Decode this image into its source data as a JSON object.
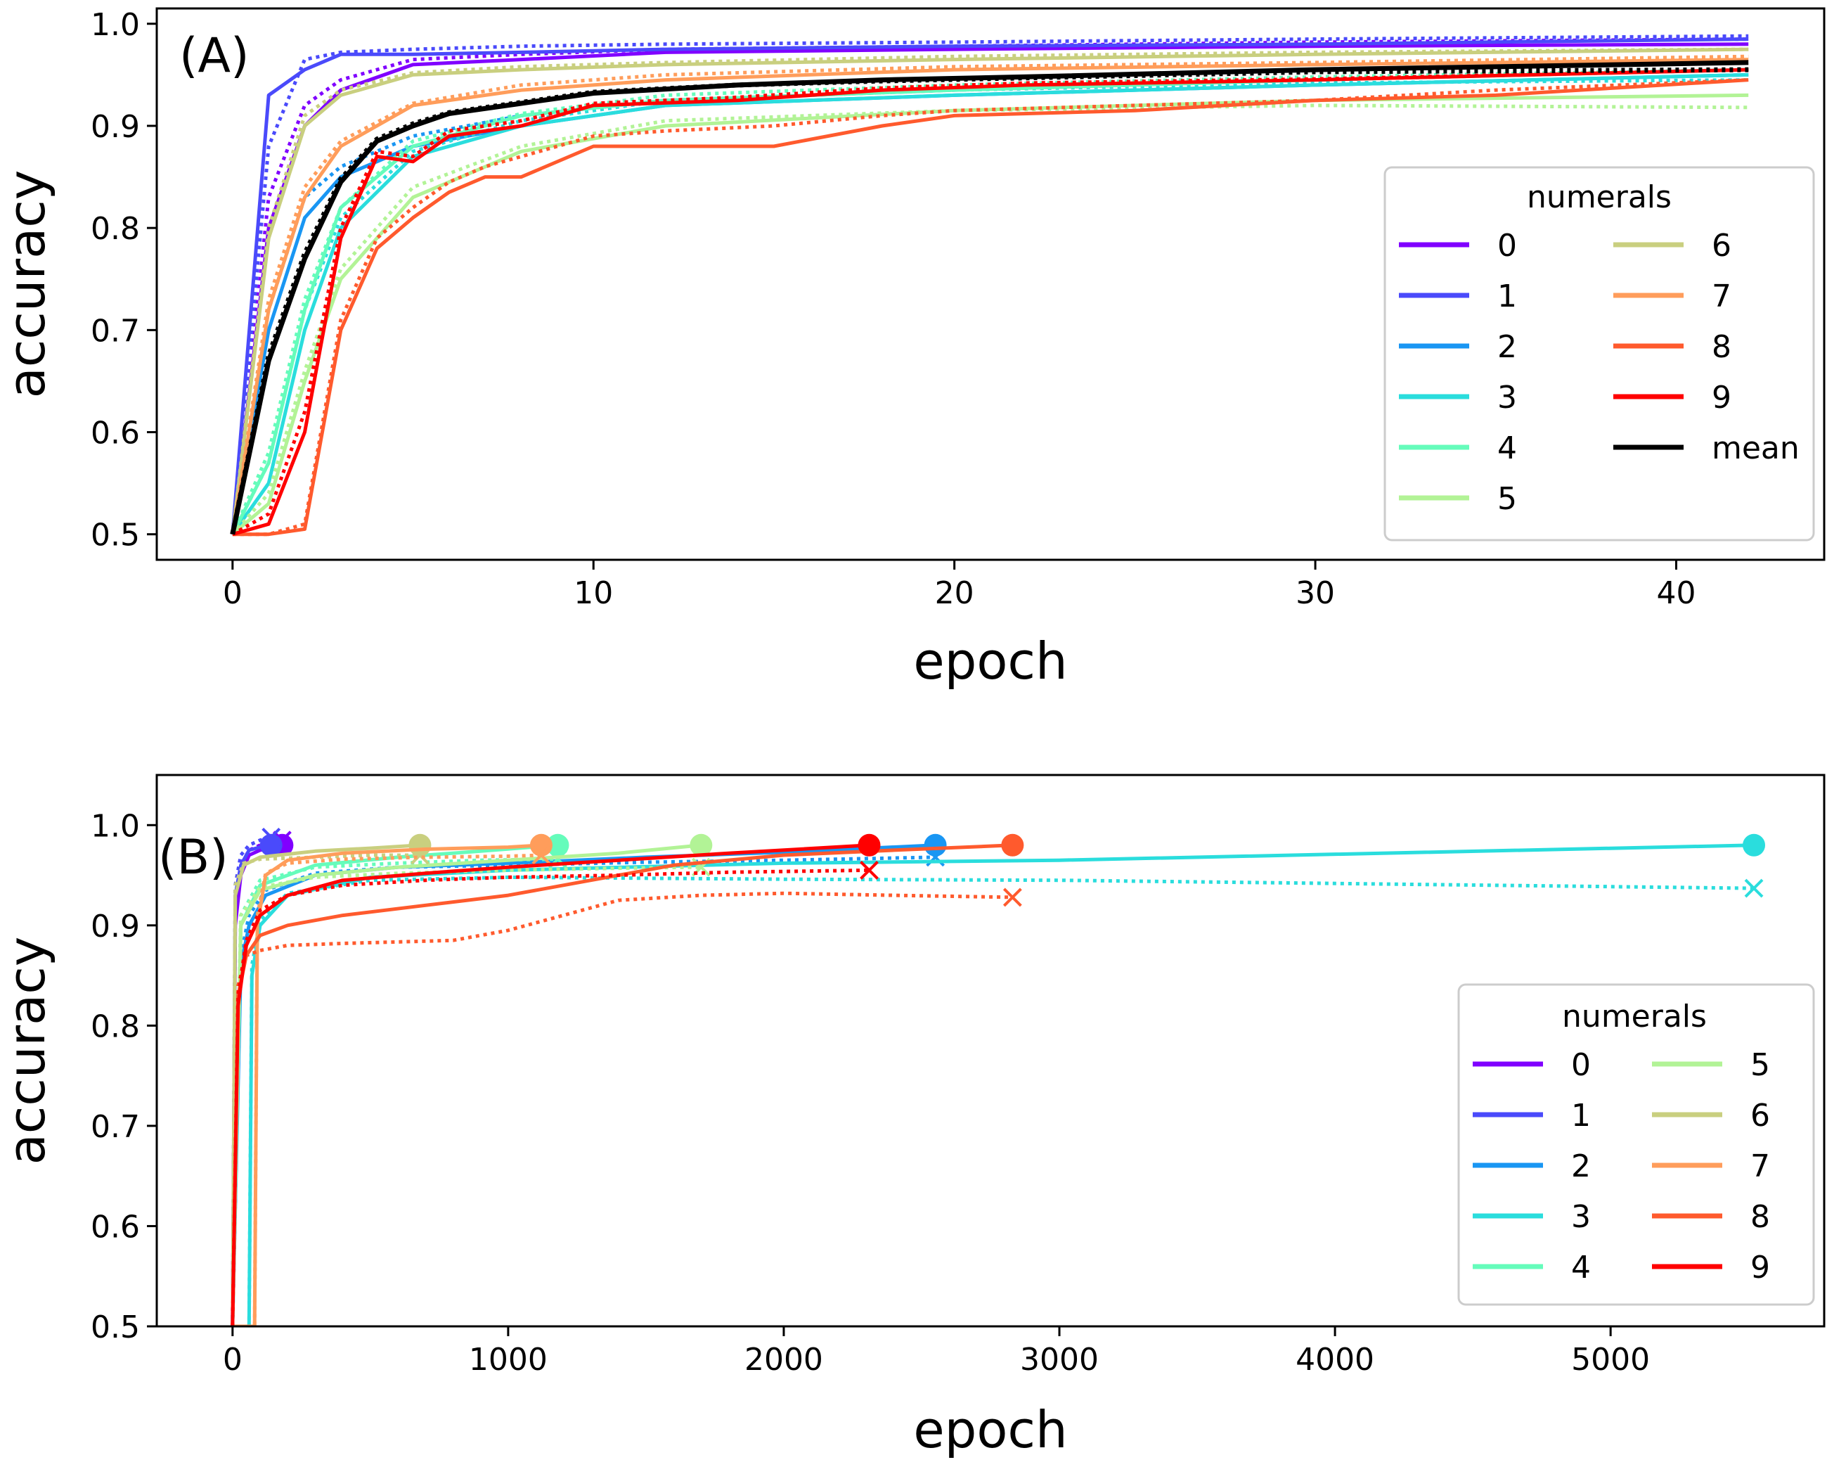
{
  "chart_data": [
    {
      "type": "line",
      "panel_label": "(A)",
      "xlabel": "epoch",
      "ylabel": "accuracy",
      "xlim": [
        -2.1,
        44.1
      ],
      "ylim": [
        0.475,
        1.015
      ],
      "xticks": [
        0,
        10,
        20,
        30,
        40
      ],
      "xtick_labels": [
        "0",
        "10",
        "20",
        "30",
        "40"
      ],
      "yticks": [
        0.5,
        0.6,
        0.7,
        0.8,
        0.9,
        1.0
      ],
      "ytick_labels": [
        "0.5",
        "0.6",
        "0.7",
        "0.8",
        "0.9",
        "1.0"
      ],
      "legend": {
        "title": "numerals",
        "placement": "center-right",
        "columns": 2
      },
      "series": [
        {
          "name": "0",
          "color": "#8000ff",
          "x": [
            0,
            1,
            2,
            3,
            5,
            8,
            12,
            20,
            30,
            42
          ],
          "values": [
            0.5,
            0.8,
            0.9,
            0.935,
            0.96,
            0.965,
            0.972,
            0.975,
            0.978,
            0.98
          ],
          "dotted_values": [
            0.5,
            0.83,
            0.92,
            0.945,
            0.965,
            0.97,
            0.975,
            0.978,
            0.982,
            0.985
          ]
        },
        {
          "name": "1",
          "color": "#4a4afb",
          "x": [
            0,
            1,
            2,
            3,
            5,
            8,
            12,
            20,
            30,
            42
          ],
          "values": [
            0.5,
            0.93,
            0.955,
            0.97,
            0.97,
            0.972,
            0.975,
            0.978,
            0.98,
            0.985
          ],
          "dotted_values": [
            0.5,
            0.88,
            0.965,
            0.972,
            0.975,
            0.978,
            0.98,
            0.982,
            0.985,
            0.988
          ]
        },
        {
          "name": "2",
          "color": "#1996f3",
          "x": [
            0,
            1,
            2,
            3,
            5,
            8,
            12,
            20,
            30,
            42
          ],
          "values": [
            0.5,
            0.7,
            0.81,
            0.85,
            0.88,
            0.9,
            0.92,
            0.93,
            0.94,
            0.95
          ],
          "dotted_values": [
            0.5,
            0.72,
            0.83,
            0.86,
            0.89,
            0.91,
            0.925,
            0.935,
            0.945,
            0.955
          ]
        },
        {
          "name": "3",
          "color": "#2adddd",
          "x": [
            0,
            1,
            2,
            3,
            5,
            8,
            12,
            20,
            30,
            42
          ],
          "values": [
            0.5,
            0.55,
            0.7,
            0.8,
            0.87,
            0.9,
            0.92,
            0.93,
            0.94,
            0.95
          ],
          "dotted_values": [
            0.5,
            0.57,
            0.72,
            0.81,
            0.875,
            0.905,
            0.925,
            0.935,
            0.942,
            0.945
          ]
        },
        {
          "name": "4",
          "color": "#65fcbb",
          "x": [
            0,
            1,
            2,
            3,
            5,
            8,
            12,
            20,
            30,
            42
          ],
          "values": [
            0.5,
            0.57,
            0.72,
            0.82,
            0.88,
            0.91,
            0.925,
            0.935,
            0.945,
            0.955
          ],
          "dotted_values": [
            0.5,
            0.58,
            0.73,
            0.82,
            0.885,
            0.912,
            0.93,
            0.94,
            0.948,
            0.955
          ]
        },
        {
          "name": "5",
          "color": "#b2f396",
          "x": [
            0,
            1,
            2,
            3,
            5,
            8,
            12,
            20,
            30,
            42
          ],
          "values": [
            0.5,
            0.53,
            0.65,
            0.75,
            0.83,
            0.875,
            0.9,
            0.915,
            0.925,
            0.93
          ],
          "dotted_values": [
            0.5,
            0.54,
            0.66,
            0.76,
            0.84,
            0.88,
            0.905,
            0.915,
            0.92,
            0.918
          ]
        },
        {
          "name": "6",
          "color": "#c9cf7f",
          "x": [
            0,
            1,
            2,
            3,
            5,
            8,
            12,
            20,
            30,
            42
          ],
          "values": [
            0.5,
            0.79,
            0.9,
            0.93,
            0.95,
            0.955,
            0.96,
            0.965,
            0.97,
            0.975
          ],
          "dotted_values": [
            0.5,
            0.8,
            0.91,
            0.935,
            0.952,
            0.958,
            0.962,
            0.968,
            0.972,
            0.975
          ]
        },
        {
          "name": "7",
          "color": "#ff9d5b",
          "x": [
            0,
            1,
            2,
            3,
            5,
            8,
            12,
            20,
            30,
            42
          ],
          "values": [
            0.5,
            0.72,
            0.83,
            0.88,
            0.92,
            0.935,
            0.945,
            0.955,
            0.96,
            0.965
          ],
          "dotted_values": [
            0.5,
            0.73,
            0.84,
            0.885,
            0.922,
            0.94,
            0.95,
            0.958,
            0.962,
            0.968
          ]
        },
        {
          "name": "8",
          "color": "#ff5a2d",
          "x": [
            0,
            1,
            2,
            3,
            4,
            5,
            6,
            7,
            8,
            10,
            12,
            15,
            18,
            20,
            25,
            30,
            35,
            42
          ],
          "values": [
            0.5,
            0.5,
            0.505,
            0.7,
            0.78,
            0.81,
            0.835,
            0.85,
            0.85,
            0.88,
            0.88,
            0.88,
            0.9,
            0.91,
            0.915,
            0.925,
            0.93,
            0.945
          ],
          "dotted_values": [
            0.5,
            0.5,
            0.51,
            0.71,
            0.79,
            0.82,
            0.845,
            0.86,
            0.87,
            0.89,
            0.895,
            0.9,
            0.91,
            0.915,
            0.92,
            0.925,
            0.935,
            0.945
          ]
        },
        {
          "name": "9",
          "color": "#ff0000",
          "x": [
            0,
            1,
            2,
            3,
            4,
            5,
            6,
            8,
            10,
            14,
            18,
            22,
            30,
            42
          ],
          "values": [
            0.5,
            0.51,
            0.6,
            0.79,
            0.87,
            0.865,
            0.89,
            0.9,
            0.92,
            0.925,
            0.935,
            0.94,
            0.945,
            0.955
          ],
          "dotted_values": [
            0.5,
            0.52,
            0.62,
            0.8,
            0.875,
            0.87,
            0.895,
            0.905,
            0.922,
            0.928,
            0.937,
            0.942,
            0.946,
            0.955
          ]
        },
        {
          "name": "mean",
          "color": "#000000",
          "x": [
            0,
            1,
            2,
            3,
            4,
            5,
            6,
            8,
            10,
            14,
            18,
            22,
            30,
            42
          ],
          "values": [
            0.5,
            0.67,
            0.77,
            0.845,
            0.885,
            0.9,
            0.912,
            0.922,
            0.932,
            0.94,
            0.945,
            0.948,
            0.955,
            0.962
          ],
          "dotted_values": [
            0.5,
            0.675,
            0.775,
            0.848,
            0.887,
            0.902,
            0.913,
            0.923,
            0.933,
            0.94,
            0.944,
            0.947,
            0.953,
            0.955
          ]
        }
      ]
    },
    {
      "type": "line",
      "panel_label": "(B)",
      "xlabel": "epoch",
      "ylabel": "accuracy",
      "xlim": [
        -275,
        5775
      ],
      "ylim": [
        0.5,
        1.05
      ],
      "xticks": [
        0,
        1000,
        2000,
        3000,
        4000,
        5000
      ],
      "xtick_labels": [
        "0",
        "1000",
        "2000",
        "3000",
        "4000",
        "5000"
      ],
      "yticks": [
        0.5,
        0.6,
        0.7,
        0.8,
        0.9,
        1.0
      ],
      "ytick_labels": [
        "0.5",
        "0.6",
        "0.7",
        "0.8",
        "0.9",
        "1.0"
      ],
      "legend": {
        "title": "numerals",
        "placement": "lower-right",
        "columns": 2
      },
      "series": [
        {
          "name": "0",
          "color": "#8000ff",
          "x": [
            0,
            10,
            30,
            60,
            100,
            180
          ],
          "values": [
            0.5,
            0.9,
            0.95,
            0.97,
            0.975,
            0.98
          ],
          "dotted_x": [
            0,
            10,
            30,
            60,
            100,
            180
          ],
          "dotted_values": [
            0.5,
            0.92,
            0.96,
            0.975,
            0.98,
            0.985
          ],
          "end_epoch": 180,
          "end_value": 0.98,
          "test_value": 0.985
        },
        {
          "name": "1",
          "color": "#4a4afb",
          "x": [
            0,
            10,
            30,
            60,
            100,
            140
          ],
          "values": [
            0.5,
            0.93,
            0.96,
            0.975,
            0.978,
            0.98
          ],
          "dotted_x": [
            0,
            10,
            30,
            60,
            100,
            140
          ],
          "dotted_values": [
            0.5,
            0.94,
            0.97,
            0.98,
            0.985,
            0.988
          ],
          "end_epoch": 140,
          "end_value": 0.98,
          "test_value": 0.988
        },
        {
          "name": "2",
          "color": "#1996f3",
          "x": [
            0,
            30,
            60,
            120,
            300,
            600,
            1000,
            1500,
            2000,
            2550
          ],
          "values": [
            0.5,
            0.86,
            0.9,
            0.93,
            0.95,
            0.958,
            0.962,
            0.968,
            0.973,
            0.98
          ],
          "dotted_x": [
            0,
            30,
            60,
            120,
            300,
            600,
            1000,
            1500,
            2000,
            2550
          ],
          "dotted_values": [
            0.5,
            0.87,
            0.91,
            0.935,
            0.952,
            0.958,
            0.96,
            0.963,
            0.965,
            0.968
          ],
          "end_epoch": 2550,
          "end_value": 0.98,
          "test_value": 0.968
        },
        {
          "name": "3",
          "color": "#2adddd",
          "x": [
            0,
            60,
            70,
            100,
            200,
            500,
            1000,
            2000,
            3000,
            5520
          ],
          "values": [
            0.5,
            0.5,
            0.85,
            0.9,
            0.93,
            0.948,
            0.955,
            0.962,
            0.965,
            0.98
          ],
          "dotted_x": [
            0,
            60,
            70,
            100,
            200,
            500,
            1000,
            2000,
            3000,
            5520
          ],
          "dotted_values": [
            0.5,
            0.5,
            0.86,
            0.905,
            0.932,
            0.945,
            0.948,
            0.946,
            0.945,
            0.937
          ],
          "end_epoch": 5520,
          "end_value": 0.98,
          "test_value": 0.937
        },
        {
          "name": "4",
          "color": "#65fcbb",
          "x": [
            0,
            30,
            100,
            300,
            600,
            900,
            1180
          ],
          "values": [
            0.5,
            0.9,
            0.94,
            0.96,
            0.968,
            0.974,
            0.98
          ],
          "dotted_x": [
            0,
            30,
            100,
            300,
            600,
            900,
            1180
          ],
          "dotted_values": [
            0.5,
            0.91,
            0.945,
            0.958,
            0.962,
            0.965,
            0.966
          ],
          "end_epoch": 1180,
          "end_value": 0.98,
          "test_value": 0.966
        },
        {
          "name": "5",
          "color": "#b2f396",
          "x": [
            0,
            30,
            100,
            300,
            600,
            1000,
            1400,
            1700
          ],
          "values": [
            0.5,
            0.9,
            0.935,
            0.95,
            0.958,
            0.965,
            0.972,
            0.98
          ],
          "dotted_x": [
            0,
            30,
            100,
            300,
            600,
            1000,
            1400,
            1700
          ],
          "dotted_values": [
            0.5,
            0.91,
            0.938,
            0.948,
            0.952,
            0.955,
            0.957,
            0.958
          ],
          "end_epoch": 1700,
          "end_value": 0.98,
          "test_value": 0.958
        },
        {
          "name": "6",
          "color": "#c9cf7f",
          "x": [
            0,
            10,
            40,
            100,
            300,
            500,
            680
          ],
          "values": [
            0.5,
            0.93,
            0.96,
            0.968,
            0.974,
            0.977,
            0.98
          ],
          "dotted_x": [
            0,
            10,
            40,
            100,
            300,
            500,
            680
          ],
          "dotted_values": [
            0.5,
            0.94,
            0.962,
            0.966,
            0.968,
            0.97,
            0.97
          ],
          "end_epoch": 680,
          "end_value": 0.98,
          "test_value": 0.97
        },
        {
          "name": "7",
          "color": "#ff9d5b",
          "x": [
            0,
            80,
            90,
            120,
            200,
            400,
            700,
            1000,
            1120
          ],
          "values": [
            0.5,
            0.5,
            0.9,
            0.95,
            0.965,
            0.972,
            0.976,
            0.978,
            0.98
          ],
          "dotted_x": [
            0,
            80,
            90,
            120,
            200,
            400,
            700,
            1000,
            1120
          ],
          "dotted_values": [
            0.5,
            0.5,
            0.91,
            0.952,
            0.962,
            0.966,
            0.968,
            0.969,
            0.97
          ],
          "end_epoch": 1120,
          "end_value": 0.98,
          "test_value": 0.97
        },
        {
          "name": "8",
          "color": "#ff5a2d",
          "x": [
            0,
            20,
            50,
            100,
            200,
            400,
            700,
            1000,
            1300,
            1600,
            2000,
            2400,
            2830
          ],
          "values": [
            0.5,
            0.83,
            0.87,
            0.89,
            0.9,
            0.91,
            0.92,
            0.93,
            0.945,
            0.96,
            0.97,
            0.975,
            0.98
          ],
          "dotted_x": [
            0,
            20,
            50,
            100,
            200,
            400,
            800,
            1000,
            1200,
            1400,
            1700,
            2000,
            2400,
            2830
          ],
          "dotted_values": [
            0.5,
            0.84,
            0.87,
            0.875,
            0.88,
            0.882,
            0.885,
            0.895,
            0.91,
            0.925,
            0.93,
            0.932,
            0.93,
            0.928
          ],
          "end_epoch": 2830,
          "end_value": 0.98,
          "test_value": 0.928
        },
        {
          "name": "9",
          "color": "#ff0000",
          "x": [
            0,
            20,
            50,
            100,
            200,
            400,
            700,
            1000,
            1400,
            1800,
            2310
          ],
          "values": [
            0.5,
            0.82,
            0.88,
            0.91,
            0.93,
            0.945,
            0.952,
            0.958,
            0.965,
            0.972,
            0.98
          ],
          "dotted_x": [
            0,
            20,
            50,
            100,
            200,
            400,
            700,
            1000,
            1400,
            1800,
            2310
          ],
          "dotted_values": [
            0.5,
            0.83,
            0.885,
            0.915,
            0.93,
            0.94,
            0.945,
            0.948,
            0.95,
            0.953,
            0.955
          ],
          "end_epoch": 2310,
          "end_value": 0.98,
          "test_value": 0.955
        }
      ]
    }
  ]
}
